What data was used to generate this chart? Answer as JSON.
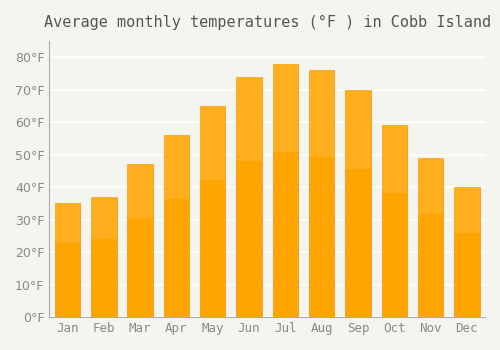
{
  "title": "Average monthly temperatures (°F ) in Cobb Island",
  "months": [
    "Jan",
    "Feb",
    "Mar",
    "Apr",
    "May",
    "Jun",
    "Jul",
    "Aug",
    "Sep",
    "Oct",
    "Nov",
    "Dec"
  ],
  "values": [
    35,
    37,
    47,
    56,
    65,
    74,
    78,
    76,
    70,
    59,
    49,
    40
  ],
  "bar_color": "#FFA500",
  "bar_edge_color": "#FF8C00",
  "bar_gradient_top": "#FFB733",
  "background_color": "#F5F5F0",
  "grid_color": "#FFFFFF",
  "yticks": [
    0,
    10,
    20,
    30,
    40,
    50,
    60,
    70,
    80
  ],
  "ylim": [
    0,
    85
  ],
  "title_fontsize": 11,
  "tick_fontsize": 9
}
